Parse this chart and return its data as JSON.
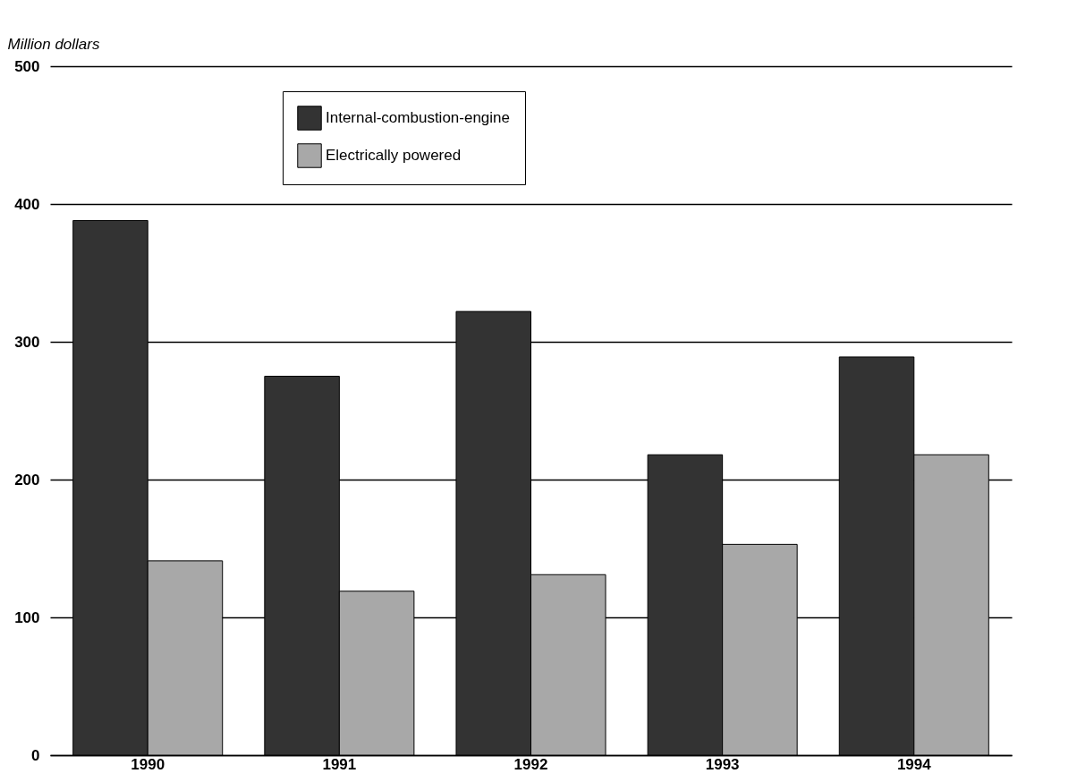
{
  "chart_data": {
    "type": "bar",
    "ylabel": "Million dollars",
    "categories": [
      "1990",
      "1991",
      "1992",
      "1993",
      "1994"
    ],
    "series": [
      {
        "name": "Internal-combustion-engine",
        "color": "#333333",
        "values": [
          388,
          275,
          322,
          218,
          289
        ]
      },
      {
        "name": "Electrically powered",
        "color": "#a8a8a8",
        "values": [
          141,
          119,
          131,
          153,
          218
        ]
      }
    ],
    "ylim": [
      0,
      500
    ],
    "yticks": [
      0,
      100,
      200,
      300,
      400,
      500
    ],
    "grid": "y",
    "legend": "top left"
  }
}
